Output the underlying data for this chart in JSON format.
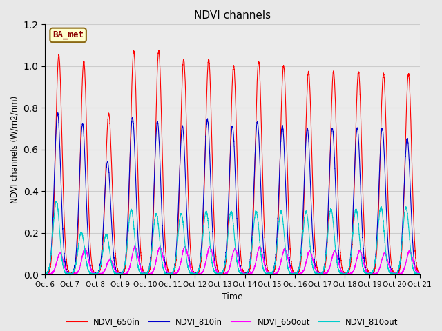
{
  "title": "NDVI channels",
  "xlabel": "Time",
  "ylabel": "NDVI channels (W/m2/nm)",
  "ylim": [
    0.0,
    1.2
  ],
  "annotation_text": "BA_met",
  "annotation_color": "#8B0000",
  "annotation_bg": "#FFFFCC",
  "annotation_border": "#8B6914",
  "legend_labels": [
    "NDVI_650in",
    "NDVI_810in",
    "NDVI_650out",
    "NDVI_810out"
  ],
  "line_colors": [
    "#FF0000",
    "#0000CC",
    "#FF00FF",
    "#00CCCC"
  ],
  "xtick_labels": [
    "Oct 6",
    "Oct 7",
    "Oct 8",
    "Oct 9",
    "Oct 10",
    "Oct 11",
    "Oct 12",
    "Oct 13",
    "Oct 14",
    "Oct 15",
    "Oct 16",
    "Oct 17",
    "Oct 18",
    "Oct 19",
    "Oct 20",
    "Oct 21"
  ],
  "grid_color": "#CCCCCC",
  "bg_color": "#E8E8E8",
  "plot_bg": "#EBEBEB",
  "n_days": 15,
  "peaks_650in": [
    1.05,
    1.02,
    0.77,
    1.07,
    1.07,
    1.03,
    1.03,
    1.0,
    1.02,
    1.0,
    0.97,
    0.97,
    0.97,
    0.96,
    0.96
  ],
  "peaks_810in": [
    0.77,
    0.72,
    0.54,
    0.75,
    0.73,
    0.71,
    0.74,
    0.71,
    0.73,
    0.71,
    0.7,
    0.7,
    0.7,
    0.7,
    0.65
  ],
  "peaks_650out": [
    0.1,
    0.12,
    0.07,
    0.13,
    0.13,
    0.13,
    0.13,
    0.12,
    0.13,
    0.12,
    0.11,
    0.11,
    0.11,
    0.1,
    0.11
  ],
  "peaks_810out": [
    0.35,
    0.2,
    0.19,
    0.31,
    0.29,
    0.29,
    0.3,
    0.3,
    0.3,
    0.3,
    0.3,
    0.31,
    0.31,
    0.32,
    0.32
  ],
  "peak_offset_650in": [
    0.55,
    0.55,
    0.55,
    0.55,
    0.55,
    0.55,
    0.55,
    0.55,
    0.55,
    0.55,
    0.55,
    0.55,
    0.55,
    0.55,
    0.55
  ],
  "peak_offset_810in": [
    0.5,
    0.5,
    0.5,
    0.5,
    0.5,
    0.5,
    0.5,
    0.5,
    0.5,
    0.5,
    0.5,
    0.5,
    0.5,
    0.5,
    0.5
  ],
  "peak_offset_650out": [
    0.6,
    0.6,
    0.6,
    0.6,
    0.6,
    0.6,
    0.6,
    0.6,
    0.6,
    0.6,
    0.6,
    0.6,
    0.6,
    0.6,
    0.6
  ],
  "peak_offset_810out": [
    0.45,
    0.45,
    0.45,
    0.45,
    0.45,
    0.45,
    0.45,
    0.45,
    0.45,
    0.45,
    0.45,
    0.45,
    0.45,
    0.45,
    0.45
  ]
}
